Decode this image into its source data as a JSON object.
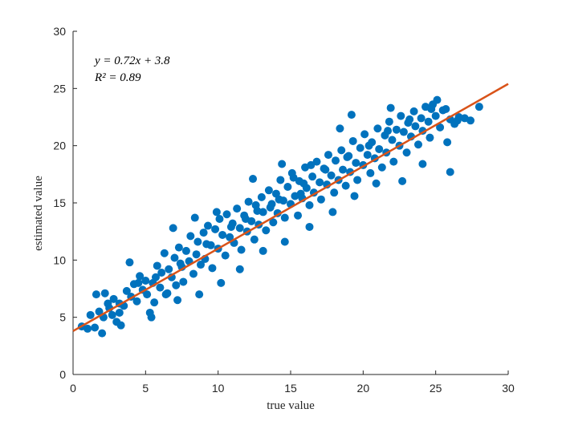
{
  "chart_data": {
    "type": "scatter",
    "title": "",
    "xlabel": "true value",
    "ylabel": "estimated value",
    "xlim": [
      0,
      30
    ],
    "ylim": [
      0,
      30
    ],
    "xticks": [
      0,
      5,
      10,
      15,
      20,
      25,
      30
    ],
    "yticks": [
      0,
      5,
      10,
      15,
      20,
      25,
      30
    ],
    "grid": false,
    "annotation": {
      "equation": "y = 0.72x + 3.8",
      "r_squared": "R² = 0.89"
    },
    "colors": {
      "scatter": "#0072BD",
      "fit": "#D95319",
      "axis": "#262626"
    },
    "fit_line": {
      "slope": 0.72,
      "intercept": 3.8,
      "x_range": [
        0,
        30
      ]
    },
    "series": [
      {
        "marker": "filled-circle",
        "points": [
          [
            0.6,
            4.2
          ],
          [
            1.2,
            5.2
          ],
          [
            1.5,
            4.1
          ],
          [
            1.6,
            7.0
          ],
          [
            1.8,
            5.5
          ],
          [
            2.0,
            3.6
          ],
          [
            2.1,
            5.0
          ],
          [
            2.2,
            7.1
          ],
          [
            2.4,
            6.2
          ],
          [
            2.5,
            5.8
          ],
          [
            2.8,
            6.6
          ],
          [
            3.0,
            4.6
          ],
          [
            3.2,
            5.4
          ],
          [
            3.5,
            6.0
          ],
          [
            3.7,
            7.3
          ],
          [
            3.9,
            9.8
          ],
          [
            4.0,
            6.8
          ],
          [
            4.2,
            7.9
          ],
          [
            4.4,
            6.4
          ],
          [
            4.6,
            8.6
          ],
          [
            4.8,
            7.4
          ],
          [
            5.0,
            8.2
          ],
          [
            5.1,
            7.0
          ],
          [
            5.3,
            5.4
          ],
          [
            5.5,
            8.0
          ],
          [
            5.6,
            6.3
          ],
          [
            5.8,
            9.5
          ],
          [
            6.0,
            7.6
          ],
          [
            6.1,
            8.9
          ],
          [
            6.3,
            10.6
          ],
          [
            6.5,
            7.1
          ],
          [
            6.6,
            9.2
          ],
          [
            6.8,
            8.5
          ],
          [
            7.0,
            10.2
          ],
          [
            7.1,
            7.8
          ],
          [
            7.3,
            11.1
          ],
          [
            7.5,
            9.4
          ],
          [
            7.6,
            8.1
          ],
          [
            7.8,
            10.8
          ],
          [
            8.0,
            9.9
          ],
          [
            8.1,
            12.1
          ],
          [
            8.3,
            8.8
          ],
          [
            8.5,
            10.5
          ],
          [
            8.6,
            11.6
          ],
          [
            8.8,
            9.6
          ],
          [
            9.0,
            12.4
          ],
          [
            9.1,
            10.1
          ],
          [
            9.3,
            13.0
          ],
          [
            9.5,
            11.3
          ],
          [
            9.6,
            9.3
          ],
          [
            9.8,
            12.7
          ],
          [
            10.0,
            11.0
          ],
          [
            10.1,
            13.6
          ],
          [
            10.3,
            12.2
          ],
          [
            10.5,
            10.4
          ],
          [
            10.6,
            14.0
          ],
          [
            10.8,
            12.0
          ],
          [
            11.0,
            13.2
          ],
          [
            11.1,
            11.5
          ],
          [
            11.3,
            14.5
          ],
          [
            11.5,
            12.8
          ],
          [
            11.6,
            10.9
          ],
          [
            11.8,
            13.9
          ],
          [
            12.0,
            12.5
          ],
          [
            12.1,
            15.1
          ],
          [
            12.3,
            13.4
          ],
          [
            12.5,
            11.8
          ],
          [
            12.6,
            14.8
          ],
          [
            12.8,
            13.1
          ],
          [
            13.0,
            15.5
          ],
          [
            13.1,
            14.2
          ],
          [
            13.3,
            12.6
          ],
          [
            13.5,
            16.1
          ],
          [
            13.6,
            14.6
          ],
          [
            13.8,
            13.3
          ],
          [
            14.0,
            15.8
          ],
          [
            14.1,
            14.1
          ],
          [
            14.3,
            17.0
          ],
          [
            14.5,
            15.2
          ],
          [
            14.6,
            13.7
          ],
          [
            14.8,
            16.4
          ],
          [
            15.0,
            14.9
          ],
          [
            15.1,
            17.6
          ],
          [
            15.3,
            15.6
          ],
          [
            15.5,
            13.9
          ],
          [
            15.6,
            16.9
          ],
          [
            15.8,
            15.4
          ],
          [
            16.0,
            18.1
          ],
          [
            16.1,
            16.3
          ],
          [
            16.3,
            14.8
          ],
          [
            16.5,
            17.3
          ],
          [
            16.6,
            15.9
          ],
          [
            16.8,
            18.6
          ],
          [
            17.0,
            16.8
          ],
          [
            17.1,
            15.3
          ],
          [
            17.3,
            18.0
          ],
          [
            17.5,
            16.6
          ],
          [
            17.6,
            19.2
          ],
          [
            17.8,
            17.4
          ],
          [
            18.0,
            15.9
          ],
          [
            18.1,
            18.7
          ],
          [
            18.3,
            17.0
          ],
          [
            18.5,
            19.6
          ],
          [
            18.6,
            17.9
          ],
          [
            18.8,
            16.5
          ],
          [
            19.0,
            19.1
          ],
          [
            19.1,
            17.7
          ],
          [
            19.3,
            20.4
          ],
          [
            19.5,
            18.5
          ],
          [
            19.6,
            17.0
          ],
          [
            19.8,
            19.8
          ],
          [
            20.0,
            18.3
          ],
          [
            20.1,
            21.0
          ],
          [
            20.3,
            19.2
          ],
          [
            20.5,
            17.6
          ],
          [
            20.6,
            20.3
          ],
          [
            20.8,
            18.9
          ],
          [
            21.0,
            21.5
          ],
          [
            21.1,
            19.7
          ],
          [
            21.3,
            18.1
          ],
          [
            21.5,
            20.9
          ],
          [
            21.6,
            19.4
          ],
          [
            21.8,
            22.1
          ],
          [
            22.0,
            20.5
          ],
          [
            22.1,
            18.6
          ],
          [
            22.3,
            21.4
          ],
          [
            22.5,
            20.0
          ],
          [
            22.6,
            22.6
          ],
          [
            22.8,
            21.2
          ],
          [
            23.0,
            19.4
          ],
          [
            23.1,
            22.0
          ],
          [
            23.3,
            20.8
          ],
          [
            23.5,
            23.0
          ],
          [
            23.6,
            21.7
          ],
          [
            23.8,
            20.1
          ],
          [
            24.0,
            22.4
          ],
          [
            24.1,
            21.3
          ],
          [
            24.3,
            23.4
          ],
          [
            24.5,
            22.1
          ],
          [
            24.6,
            20.7
          ],
          [
            24.8,
            23.6
          ],
          [
            25.0,
            22.6
          ],
          [
            25.1,
            24.0
          ],
          [
            25.3,
            21.6
          ],
          [
            25.5,
            23.1
          ],
          [
            25.8,
            20.3
          ],
          [
            26.0,
            22.3
          ],
          [
            26.3,
            21.9
          ],
          [
            26.6,
            22.5
          ],
          [
            27.0,
            22.4
          ],
          [
            28.0,
            23.4
          ],
          [
            1.0,
            4.0
          ],
          [
            3.3,
            4.3
          ],
          [
            5.4,
            5.0
          ],
          [
            6.9,
            12.8
          ],
          [
            8.4,
            13.7
          ],
          [
            9.9,
            14.2
          ],
          [
            12.4,
            17.1
          ],
          [
            14.4,
            18.4
          ],
          [
            15.2,
            17.2
          ],
          [
            16.4,
            18.3
          ],
          [
            18.4,
            21.5
          ],
          [
            19.2,
            22.7
          ],
          [
            21.9,
            23.3
          ],
          [
            26.0,
            17.7
          ],
          [
            24.1,
            18.4
          ],
          [
            22.7,
            16.9
          ],
          [
            20.9,
            16.7
          ],
          [
            19.4,
            15.6
          ],
          [
            17.9,
            14.2
          ],
          [
            16.3,
            12.9
          ],
          [
            14.6,
            11.6
          ],
          [
            13.1,
            10.8
          ],
          [
            11.5,
            9.2
          ],
          [
            10.2,
            8.0
          ],
          [
            8.7,
            7.0
          ],
          [
            7.2,
            6.5
          ],
          [
            6.4,
            7.0
          ],
          [
            3.2,
            6.2
          ],
          [
            4.5,
            8.0
          ],
          [
            5.7,
            8.5
          ],
          [
            7.4,
            9.7
          ],
          [
            9.2,
            11.4
          ],
          [
            10.9,
            12.9
          ],
          [
            12.7,
            14.3
          ],
          [
            14.2,
            15.3
          ],
          [
            15.9,
            16.7
          ],
          [
            17.4,
            17.9
          ],
          [
            18.9,
            19.0
          ],
          [
            20.4,
            20.0
          ],
          [
            21.7,
            21.3
          ],
          [
            23.2,
            22.3
          ],
          [
            24.7,
            23.2
          ],
          [
            25.7,
            23.2
          ],
          [
            26.5,
            22.2
          ],
          [
            27.4,
            22.2
          ],
          [
            2.7,
            5.2
          ],
          [
            11.9,
            13.6
          ],
          [
            13.7,
            14.9
          ],
          [
            15.7,
            15.8
          ]
        ]
      }
    ]
  }
}
